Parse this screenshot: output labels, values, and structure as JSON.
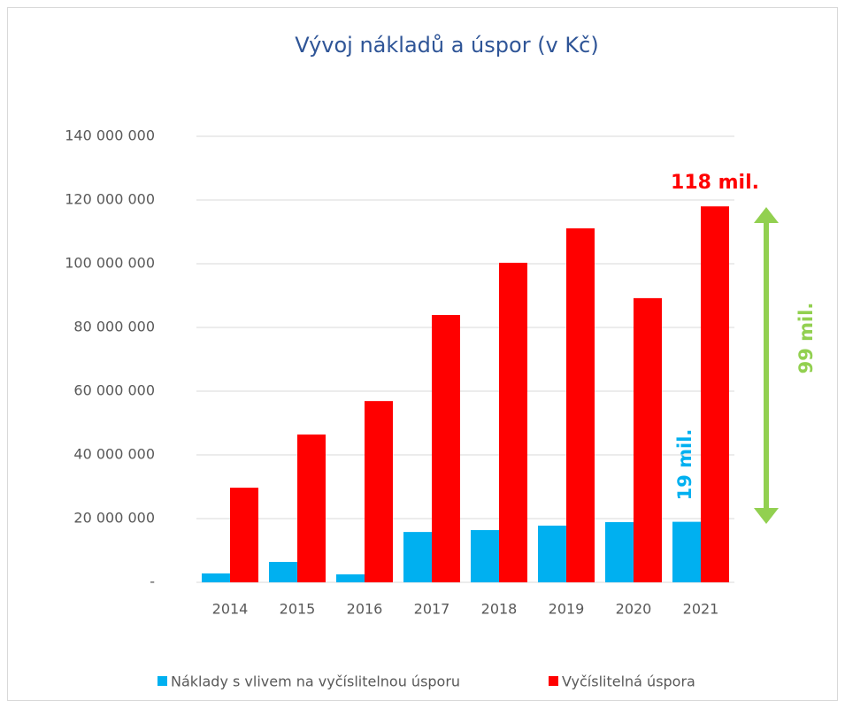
{
  "chart_data": {
    "type": "bar",
    "title": "Vývoj nákladů a úspor (v Kč)",
    "categories": [
      "2014",
      "2015",
      "2016",
      "2017",
      "2018",
      "2019",
      "2020",
      "2021"
    ],
    "series": [
      {
        "name": "Náklady s vlivem na vyčíslitelnou úsporu",
        "color": "#00b0f0",
        "values": [
          2800000,
          6400000,
          2500000,
          15800000,
          16400000,
          17800000,
          18900000,
          19000000
        ]
      },
      {
        "name": "Vyčíslitelná úspora",
        "color": "#ff0000",
        "values": [
          29700000,
          46400000,
          56900000,
          83900000,
          100300000,
          111100000,
          89200000,
          118000000
        ]
      }
    ],
    "ylim": [
      0,
      140000000
    ],
    "yticks": [
      {
        "value": 0,
        "label": "-"
      },
      {
        "value": 20000000,
        "label": "20 000 000"
      },
      {
        "value": 40000000,
        "label": "40 000 000"
      },
      {
        "value": 60000000,
        "label": "60 000 000"
      },
      {
        "value": 80000000,
        "label": "80 000 000"
      },
      {
        "value": 100000000,
        "label": "100 000 000"
      },
      {
        "value": 120000000,
        "label": "120 000 000"
      },
      {
        "value": 140000000,
        "label": "140 000 000"
      }
    ],
    "grid": true,
    "legend": "bottom",
    "annotations": [
      "118 mil.",
      "19 mil.",
      "99 mil."
    ]
  }
}
